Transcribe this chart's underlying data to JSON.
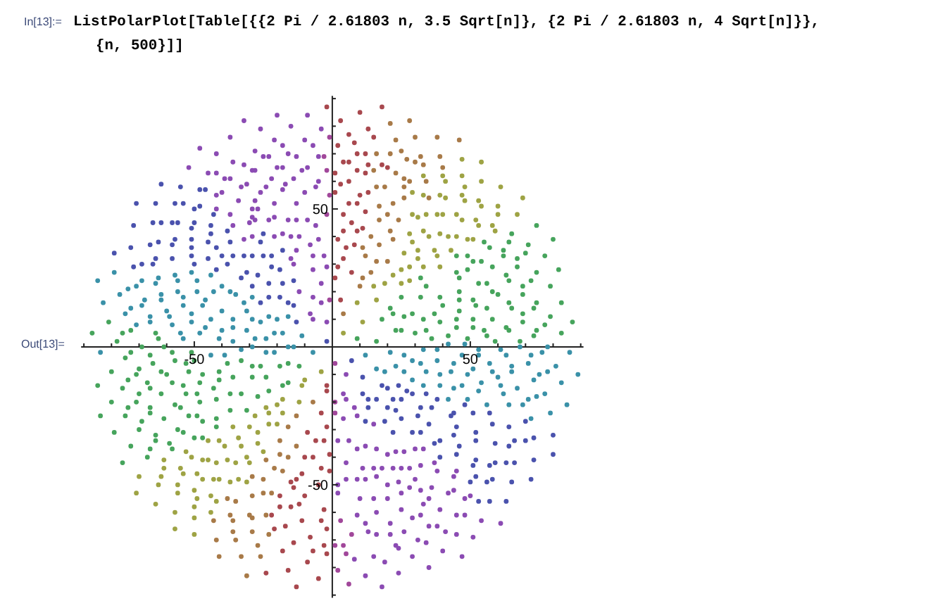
{
  "chart_data": {
    "type": "scatter",
    "annotations": [
      "In[13]:=",
      "ListPolarPlot[Table[{{2 Pi / 2.61803 n, 3.5 Sqrt[n]}, {2 Pi / 2.61803 n, 4 Sqrt[n]}}, {n, 500}]]",
      "Out[13]="
    ],
    "marker": "circle",
    "xlim": [
      -91,
      91
    ],
    "ylim": [
      -91,
      91
    ],
    "xticks": [
      {
        "value": -90,
        "label": null
      },
      {
        "value": -80,
        "label": null
      },
      {
        "value": -70,
        "label": null
      },
      {
        "value": -60,
        "label": null
      },
      -50,
      {
        "value": -40,
        "label": null
      },
      {
        "value": -30,
        "label": null
      },
      {
        "value": -20,
        "label": null
      },
      {
        "value": -10,
        "label": null
      },
      {
        "value": 10,
        "label": null
      },
      {
        "value": 20,
        "label": null
      },
      {
        "value": 30,
        "label": null
      },
      {
        "value": 40,
        "label": null
      },
      50,
      {
        "value": 60,
        "label": null
      },
      {
        "value": 70,
        "label": null
      },
      {
        "value": 80,
        "label": null
      },
      {
        "value": 90,
        "label": null
      }
    ],
    "yticks": [
      {
        "value": -90,
        "label": null
      },
      {
        "value": -80,
        "label": null
      },
      {
        "value": -70,
        "label": null
      },
      {
        "value": -60,
        "label": null
      },
      -50,
      {
        "value": -40,
        "label": null
      },
      {
        "value": -30,
        "label": null
      },
      {
        "value": -20,
        "label": null
      },
      {
        "value": -10,
        "label": null
      },
      {
        "value": 10,
        "label": null
      },
      {
        "value": 20,
        "label": null
      },
      {
        "value": 30,
        "label": null
      },
      {
        "value": 40,
        "label": null
      },
      50,
      {
        "value": 60,
        "label": null
      },
      {
        "value": 70,
        "label": null
      },
      {
        "value": 80,
        "label": null
      },
      {
        "value": 90,
        "label": null
      }
    ],
    "series": [
      {
        "color": "#8b4bb3",
        "x": [
          -32,
          -37,
          -48,
          -42,
          -52,
          -36,
          -32,
          -29,
          -45,
          -42,
          -39,
          -37,
          -42,
          -40,
          -33,
          -31,
          -42,
          -34,
          -37,
          -29,
          -36,
          -30,
          -29,
          -32,
          -29,
          -20,
          -9,
          -26,
          -15,
          -4,
          -21,
          -10,
          -7,
          -18,
          -28,
          -25,
          -23,
          -16,
          -13,
          -5,
          -28,
          -20,
          -18,
          -9,
          -11,
          -22,
          -14,
          -17,
          -24,
          -5,
          -18,
          -10,
          -6,
          -26,
          -28,
          -21,
          -13,
          -27,
          -28,
          -23,
          -21,
          -16,
          -13,
          -9,
          -6,
          -21,
          -18,
          -15,
          -12,
          -8,
          -5,
          -15,
          -13,
          -7,
          -3,
          -14,
          -7,
          -2,
          -12,
          -4,
          -7,
          -4,
          -8,
          -7,
          -2,
          5,
          4,
          5,
          8,
          4,
          9,
          15,
          2,
          6,
          9,
          12,
          16,
          20,
          23,
          26,
          30,
          5,
          11,
          15,
          18,
          22,
          25,
          28,
          32,
          2,
          5,
          9,
          12,
          16,
          20,
          24,
          30,
          2,
          10,
          15,
          20,
          25,
          28,
          32,
          9,
          12,
          16,
          21,
          25,
          29,
          13,
          16,
          21,
          24,
          26,
          31,
          8,
          15,
          19,
          23,
          29,
          12,
          24,
          18,
          33,
          37,
          38,
          45,
          44,
          36,
          44,
          35,
          42,
          33,
          39,
          48,
          50,
          32,
          45,
          48,
          54,
          61,
          35,
          38,
          41,
          45,
          51,
          34,
          40,
          47,
          35
        ],
        "values": [
          82,
          76,
          72,
          70,
          65,
          67,
          66,
          64,
          63,
          63,
          61,
          61,
          55,
          56,
          58,
          59,
          50,
          53,
          48,
          50,
          44,
          45,
          47,
          39,
          40,
          84,
          84,
          79,
          80,
          79,
          75,
          75,
          73,
          73,
          71,
          69,
          69,
          70,
          69,
          69,
          64,
          65,
          65,
          65,
          64,
          61,
          61,
          59,
          58,
          60,
          57,
          56,
          58,
          56,
          53,
          52,
          52,
          50,
          46,
          46,
          47,
          46,
          46,
          46,
          44,
          40,
          41,
          40,
          40,
          37,
          39,
          32,
          35,
          33,
          33,
          30,
          28,
          29,
          20,
          23,
          18,
          16,
          12,
          10,
          9,
          -10,
          -17,
          -19,
          -22,
          -26,
          -25,
          -28,
          -34,
          -34,
          -37,
          -36,
          -37,
          -39,
          -38,
          -38,
          -37,
          -42,
          -44,
          -44,
          -44,
          -44,
          -44,
          -44,
          -43,
          -50,
          -48,
          -48,
          -48,
          -47,
          -50,
          -49,
          -48,
          -53,
          -55,
          -55,
          -55,
          -53,
          -51,
          -52,
          -61,
          -64,
          -60,
          -64,
          -59,
          -62,
          -67,
          -68,
          -68,
          -73,
          -67,
          -70,
          -77,
          -76,
          -78,
          -72,
          -76,
          -83,
          -82,
          -87,
          -37,
          -42,
          -45,
          -45,
          -47,
          -51,
          -52,
          -55,
          -53,
          -57,
          -59,
          -55,
          -54,
          -61,
          -61,
          -61,
          -63,
          -64,
          -65,
          -65,
          -67,
          -68,
          -69,
          -71,
          -74,
          -76,
          -80
        ]
      },
      {
        "color": "#4a52ad",
        "x": [
          -62,
          -55,
          -48,
          -46,
          -71,
          -64,
          -57,
          -54,
          -50,
          -48,
          -43,
          -72,
          -65,
          -62,
          -58,
          -56,
          -51,
          -50,
          -44,
          -44,
          -38,
          -57,
          -58,
          -66,
          -63,
          -73,
          -51,
          -51,
          -45,
          -42,
          -37,
          -79,
          -69,
          -65,
          -64,
          -58,
          -51,
          -50,
          -45,
          -40,
          -36,
          -32,
          -29,
          -72,
          -42,
          -38,
          -33,
          -31,
          -29,
          -25,
          -26,
          -25,
          -22,
          -18,
          -27,
          -22,
          -19,
          -23,
          -18,
          -14,
          -26,
          -23,
          -19,
          -16,
          -14,
          -13,
          -2,
          7,
          11,
          18,
          20,
          24,
          27,
          11,
          13,
          16,
          22,
          25,
          29,
          32,
          13,
          20,
          23,
          12,
          19,
          22,
          25,
          29,
          31,
          32,
          34,
          38,
          36,
          44,
          48,
          51,
          57,
          35,
          43,
          45,
          52,
          58,
          64,
          70,
          44,
          52,
          59,
          64,
          66,
          70,
          73,
          80,
          37,
          39,
          39,
          46,
          45,
          52,
          51,
          57,
          59,
          63,
          66,
          73,
          80,
          50,
          52,
          56,
          58,
          65,
          72,
          53,
          57,
          63
        ],
        "values": [
          59,
          58,
          57,
          57,
          52,
          52,
          52,
          52,
          50,
          51,
          48,
          44,
          45,
          45,
          45,
          45,
          43,
          45,
          44,
          41,
          42,
          39,
          37,
          37,
          38,
          36,
          39,
          36,
          38,
          36,
          38,
          34,
          30,
          30,
          32,
          32,
          33,
          30,
          32,
          33,
          33,
          33,
          33,
          29,
          28,
          30,
          25,
          27,
          22,
          41,
          38,
          33,
          33,
          35,
          26,
          29,
          28,
          23,
          23,
          24,
          16,
          18,
          18,
          16,
          15,
          9,
          2,
          -5,
          -11,
          -14,
          -15,
          -14,
          -16,
          -17,
          -19,
          -19,
          -19,
          -19,
          -17,
          -22,
          -22,
          -22,
          -23,
          -27,
          -27,
          -31,
          -26,
          -31,
          -25,
          -31,
          -17,
          -19,
          -22,
          -24,
          -21,
          -24,
          -24,
          -28,
          -25,
          -29,
          -31,
          -28,
          -29,
          -27,
          -32,
          -34,
          -35,
          -36,
          -34,
          -34,
          -33,
          -32,
          -35,
          -34,
          -40,
          -36,
          -39,
          -41,
          -43,
          -43,
          -42,
          -42,
          -42,
          -41,
          -39,
          -49,
          -47,
          -49,
          -48,
          -49,
          -48,
          -56,
          -56,
          -56
        ]
      },
      {
        "color": "#3a91a8",
        "x": [
          -79,
          -63,
          -57,
          -56,
          -51,
          -49,
          -44,
          -85,
          -77,
          -74,
          -71,
          -69,
          -64,
          -62,
          -62,
          -56,
          -54,
          -49,
          -47,
          -46,
          -43,
          -40,
          -37,
          -35,
          -32,
          -29,
          -83,
          -75,
          -73,
          -69,
          -68,
          -60,
          -59,
          -54,
          -51,
          -51,
          -44,
          -40,
          -36,
          -31,
          -29,
          -71,
          -66,
          -66,
          -58,
          -55,
          -54,
          -48,
          -46,
          -40,
          -41,
          -36,
          -31,
          -36,
          -26,
          -23,
          -20,
          -16,
          -28,
          -24,
          -21,
          -18,
          -11,
          -84,
          -44,
          -39,
          -33,
          -29,
          -24,
          -21,
          -16,
          -14,
          -7,
          12,
          21,
          26,
          29,
          32,
          16,
          19,
          23,
          26,
          29,
          33,
          38,
          42,
          48,
          53,
          61,
          68,
          72,
          76,
          78,
          86,
          38,
          44,
          47,
          53,
          57,
          63,
          65,
          71,
          81,
          34,
          39,
          43,
          49,
          51,
          58,
          60,
          65,
          73,
          75,
          78,
          89,
          33,
          39,
          44,
          47,
          53,
          54,
          61,
          67,
          77,
          83,
          42,
          49,
          56,
          62,
          64,
          71,
          74,
          85,
          69,
          72,
          79
        ],
        "values": [
          27,
          25,
          26,
          24,
          27,
          24,
          26,
          24,
          19,
          21,
          22,
          24,
          23,
          19,
          17,
          20,
          18,
          20,
          15,
          17,
          20,
          22,
          20,
          19,
          16,
          18,
          16,
          12,
          14,
          15,
          17,
          13,
          11,
          15,
          9,
          12,
          10,
          13,
          10,
          13,
          10,
          8,
          11,
          9,
          8,
          5,
          3,
          5,
          7,
          6,
          3,
          7,
          6,
          2,
          9,
          11,
          10,
          11,
          3,
          3,
          5,
          5,
          4,
          -2,
          -3,
          -3,
          -1,
          0,
          -2,
          -2,
          0,
          0,
          -2,
          -3,
          -2,
          -3,
          -5,
          -6,
          -8,
          -9,
          -7,
          -9,
          -12,
          -1,
          -1,
          1,
          1,
          -1,
          -1,
          0,
          -3,
          -2,
          0,
          -2,
          -5,
          -6,
          -3,
          -3,
          -6,
          -3,
          -7,
          -6,
          -7,
          -9,
          -10,
          -9,
          -10,
          -8,
          -9,
          -11,
          -9,
          -12,
          -10,
          -9,
          -10,
          -14,
          -14,
          -15,
          -14,
          -16,
          -13,
          -14,
          -15,
          -17,
          -13,
          -19,
          -19,
          -21,
          -17,
          -21,
          -19,
          -18,
          -21,
          -21,
          -26,
          -24
        ]
      },
      {
        "color": "#46a45c",
        "x": [
          -81,
          -76,
          -73,
          -64,
          -63,
          -87,
          -78,
          21,
          25,
          32,
          18,
          22,
          26,
          29,
          9,
          16,
          23,
          25,
          30,
          74,
          65,
          80,
          55,
          57,
          64,
          62,
          71,
          45,
          49,
          51,
          54,
          70,
          62,
          67,
          77,
          45,
          46,
          49,
          53,
          56,
          58,
          63,
          64,
          67,
          72,
          74,
          82,
          32,
          34,
          39,
          40,
          46,
          46,
          51,
          52,
          58,
          60,
          64,
          65,
          69,
          69,
          74,
          79,
          83,
          33,
          37,
          39,
          45,
          46,
          51,
          51,
          56,
          58,
          63,
          64,
          69,
          69,
          73,
          74,
          73,
          77,
          79,
          83,
          87,
          34,
          36,
          42,
          45,
          49,
          55,
          56,
          59,
          68,
          -73,
          -69,
          -61,
          -58,
          -51,
          -75,
          -66,
          -65,
          -57,
          -53,
          -50,
          -41,
          -38,
          -33,
          -29,
          -80,
          -70,
          -62,
          -60,
          -52,
          -47,
          -74,
          -71,
          -67,
          -66,
          -58,
          -54,
          -48,
          -41,
          -36,
          -29,
          -85,
          -76,
          -70,
          -62,
          -57,
          -53,
          -49,
          -48,
          -43,
          -42,
          -37,
          -33,
          -80,
          -71,
          -74,
          -66,
          -66,
          -55,
          -52,
          -49,
          -47,
          -42,
          -37,
          -31,
          -84,
          -75,
          -69,
          -61,
          -56,
          -54,
          -50,
          -47,
          -42,
          -79,
          -70,
          -64,
          -64,
          -59,
          -58,
          -73,
          -66,
          -67,
          -76,
          -26,
          -19,
          -16,
          -12,
          -24,
          -23,
          -18,
          -16,
          -27
        ],
        "values": [
          9,
          5,
          6,
          5,
          3,
          5,
          2,
          14,
          18,
          18,
          10,
          12,
          11,
          12,
          3,
          2,
          6,
          6,
          5,
          44,
          41,
          39,
          38,
          36,
          38,
          35,
          37,
          33,
          33,
          31,
          31,
          34,
          33,
          32,
          33,
          27,
          25,
          28,
          23,
          23,
          29,
          26,
          24,
          29,
          24,
          27,
          28,
          25,
          22,
          18,
          15,
          20,
          17,
          17,
          15,
          20,
          19,
          16,
          14,
          22,
          19,
          16,
          22,
          16,
          10,
          12,
          9,
          10,
          13,
          10,
          7,
          14,
          10,
          7,
          6,
          12,
          9,
          14,
          6,
          4,
          8,
          11,
          5,
          9,
          6,
          3,
          4,
          7,
          3,
          6,
          4,
          2,
          2,
          -2,
          0,
          0,
          -2,
          -2,
          -4,
          -3,
          -6,
          -5,
          -6,
          -5,
          -9,
          -6,
          -5,
          -7,
          -9,
          -8,
          -9,
          -10,
          -9,
          -10,
          -12,
          -10,
          -13,
          -15,
          -13,
          -14,
          -13,
          -12,
          -11,
          -11,
          -14,
          -15,
          -17,
          -17,
          -21,
          -17,
          -17,
          -20,
          -15,
          -19,
          -17,
          -17,
          -20,
          -20,
          -22,
          -22,
          -24,
          -22,
          -25,
          -25,
          -27,
          -26,
          -23,
          -23,
          -25,
          -25,
          -27,
          -26,
          -30,
          -31,
          -33,
          -33,
          -29,
          -31,
          -30,
          -32,
          -34,
          -35,
          -37,
          -36,
          -37,
          -40,
          -42,
          -7,
          -7,
          -6,
          -7,
          -11,
          -16,
          -14,
          -13,
          -18
        ]
      },
      {
        "color": "#9ea344",
        "x": [
          33,
          29,
          33,
          29,
          31,
          28,
          29,
          31,
          31,
          26,
          22,
          25,
          28,
          15,
          19,
          25,
          28,
          9,
          16,
          11,
          4,
          47,
          54,
          40,
          41,
          47,
          54,
          48,
          61,
          39,
          41,
          47,
          48,
          53,
          54,
          60,
          69,
          34,
          38,
          40,
          45,
          47,
          52,
          60,
          67,
          53,
          58,
          33,
          35,
          39,
          42,
          45,
          49,
          51,
          59,
          37,
          38,
          43,
          33,
          39,
          -45,
          -41,
          -39,
          -36,
          -34,
          -30,
          -53,
          -51,
          -47,
          -45,
          -42,
          -38,
          -35,
          -33,
          -31,
          -30,
          -61,
          -61,
          -55,
          -54,
          -49,
          -47,
          -43,
          -41,
          -37,
          -34,
          -31,
          -70,
          -62,
          -63,
          -56,
          -56,
          -50,
          -49,
          -44,
          -42,
          -71,
          -64,
          -57,
          -50,
          -50,
          -44,
          -57,
          -50,
          -4,
          -11,
          -10,
          -24,
          -20,
          -18,
          -12,
          -28,
          -23,
          -18,
          -27,
          -23,
          -20,
          -27,
          -25
        ],
        "values": [
          62,
          56,
          55,
          48,
          47,
          41,
          38,
          35,
          32,
          34,
          26,
          28,
          29,
          22,
          23,
          23,
          24,
          16,
          17,
          9,
          5,
          68,
          67,
          62,
          60,
          62,
          60,
          58,
          58,
          55,
          54,
          55,
          53,
          53,
          51,
          51,
          54,
          48,
          48,
          48,
          48,
          46,
          46,
          48,
          48,
          44,
          44,
          42,
          40,
          41,
          40,
          40,
          39,
          39,
          42,
          35,
          33,
          35,
          29,
          29,
          -34,
          -34,
          -36,
          -29,
          -33,
          -29,
          -38,
          -40,
          -41,
          -41,
          -42,
          -41,
          -42,
          -36,
          -40,
          -42,
          -41,
          -44,
          -44,
          -46,
          -46,
          -48,
          -48,
          -48,
          -49,
          -48,
          -49,
          -47,
          -47,
          -50,
          -50,
          -53,
          -52,
          -55,
          -54,
          -56,
          -53,
          -57,
          -60,
          -58,
          -62,
          -60,
          -66,
          -68,
          -9,
          -14,
          -12,
          -22,
          -21,
          -19,
          -20,
          -25,
          -24,
          -24,
          -31,
          -28,
          -28,
          -35,
          -38
        ]
      },
      {
        "color": "#a87a48",
        "x": [
          21,
          28,
          23,
          30,
          16,
          21,
          25,
          32,
          27,
          30,
          15,
          23,
          26,
          28,
          16,
          19,
          26,
          17,
          22,
          26,
          17,
          20,
          24,
          14,
          21,
          11,
          17,
          22,
          12,
          16,
          20,
          11,
          14,
          10,
          4,
          38,
          46,
          39,
          33,
          40,
          34,
          35,
          -38,
          -35,
          -29,
          -43,
          -37,
          -36,
          -30,
          -42,
          -36,
          -35,
          -29,
          -41,
          -33,
          -31,
          -7,
          -13,
          -16,
          -19,
          -19,
          -16,
          -13,
          -24,
          -21,
          -18,
          -29,
          -25,
          -25,
          -22,
          -29,
          -24,
          -23,
          -27,
          -26
        ],
        "values": [
          81,
          82,
          75,
          76,
          70,
          70,
          71,
          69,
          68,
          67,
          64,
          63,
          61,
          60,
          58,
          58,
          58,
          51,
          52,
          54,
          46,
          48,
          46,
          40,
          42,
          36,
          37,
          39,
          33,
          31,
          31,
          25,
          27,
          22,
          12,
          76,
          75,
          69,
          66,
          65,
          60,
          54,
          -55,
          -56,
          -54,
          -63,
          -61,
          -63,
          -61,
          -70,
          -67,
          -70,
          -67,
          -76,
          -76,
          -83,
          -20,
          -25,
          -29,
          -34,
          -39,
          -40,
          -36,
          -41,
          -44,
          -45,
          -47,
          -48,
          -53,
          -53,
          -62,
          -61,
          -68,
          -72,
          -76
        ]
      },
      {
        "color": "#a8484e",
        "x": [
          -2,
          10,
          18,
          3,
          13,
          6,
          8,
          15,
          2,
          9,
          12,
          4,
          6,
          13,
          18,
          20,
          1,
          9,
          12,
          3,
          6,
          10,
          13,
          1,
          6,
          9,
          4,
          7,
          12,
          4,
          9,
          11,
          2,
          5,
          8,
          4,
          2,
          7,
          1,
          3,
          -2,
          -2,
          -4,
          -9,
          -2,
          -3,
          -6,
          -10,
          -7,
          -1,
          -11,
          -4,
          -1,
          -15,
          -13,
          -5,
          -19,
          -14,
          -10,
          -19,
          -15,
          -12,
          -3,
          -22,
          -11,
          -4,
          -21,
          -17,
          -8,
          -2,
          -18,
          -14,
          -7,
          -3,
          -2,
          -9,
          -24,
          -16,
          -5,
          -13
        ],
        "values": [
          87,
          85,
          87,
          82,
          79,
          77,
          74,
          76,
          73,
          70,
          70,
          67,
          67,
          66,
          66,
          65,
          63,
          64,
          63,
          59,
          60,
          55,
          56,
          56,
          52,
          52,
          48,
          45,
          49,
          42,
          42,
          43,
          39,
          36,
          37,
          32,
          29,
          27,
          25,
          17,
          -14,
          -16,
          -24,
          -31,
          -29,
          -34,
          -34,
          -40,
          -40,
          -39,
          -46,
          -44,
          -45,
          -49,
          -48,
          -50,
          -54,
          -51,
          -54,
          -58,
          -58,
          -57,
          -59,
          -61,
          -63,
          -63,
          -66,
          -65,
          -69,
          -66,
          -74,
          -71,
          -74,
          -72,
          -75,
          -78,
          -82,
          -81,
          -84,
          -87
        ]
      },
      {
        "color": "#a1479a",
        "x": [
          -1,
          -3,
          -2,
          -1,
          -2,
          -1,
          1,
          1,
          1,
          3,
          7,
          1,
          4,
          5,
          2,
          6
        ],
        "values": [
          76,
          69,
          64,
          55,
          48,
          17,
          -6,
          -20,
          -24,
          -63,
          -68,
          -72,
          -72,
          -75,
          -81,
          -86
        ]
      }
    ]
  }
}
